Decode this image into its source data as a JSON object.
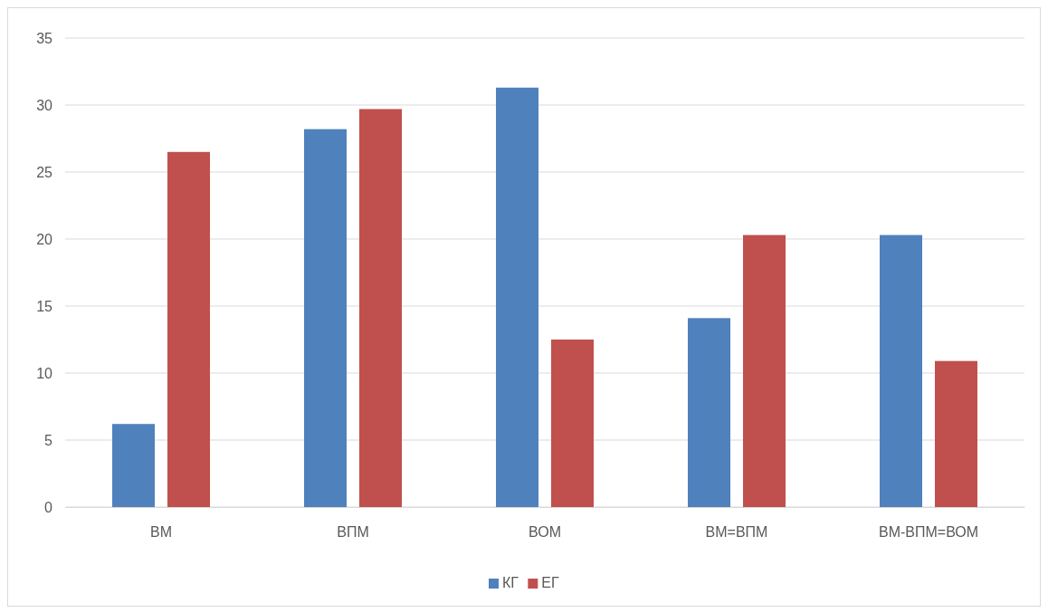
{
  "chart_data": {
    "type": "bar",
    "categories": [
      "ВМ",
      "ВПМ",
      "ВОМ",
      "ВМ=ВПМ",
      "ВМ-ВПМ=ВОМ"
    ],
    "series": [
      {
        "name": "КГ",
        "color": "#4f81bd",
        "values": [
          6.2,
          28.2,
          31.3,
          14.1,
          20.3
        ]
      },
      {
        "name": "ЕГ",
        "color": "#c0504d",
        "values": [
          26.5,
          29.7,
          12.5,
          20.3,
          10.9
        ]
      }
    ],
    "ylim": [
      0,
      35
    ],
    "yticks": [
      0,
      5,
      10,
      15,
      20,
      25,
      30,
      35
    ],
    "grid": "y",
    "legend": "bottom"
  }
}
